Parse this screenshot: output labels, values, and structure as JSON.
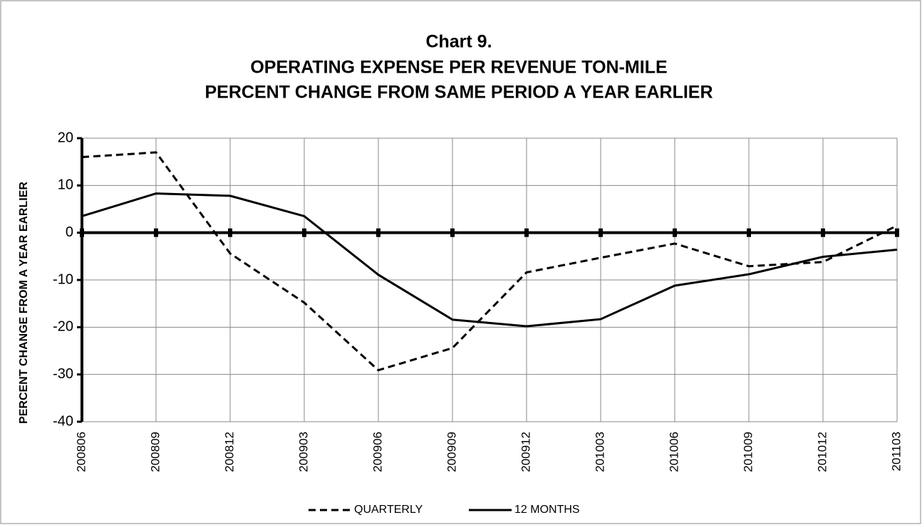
{
  "chart_data": {
    "type": "line",
    "title": [
      "Chart 9.",
      "OPERATING EXPENSE PER REVENUE TON-MILE",
      "PERCENT CHANGE FROM SAME PERIOD A YEAR EARLIER"
    ],
    "y_label": "PERCENT CHANGE FROM A YEAR EARLIER",
    "categories": [
      "200806",
      "200809",
      "200812",
      "200903",
      "200906",
      "200909",
      "200912",
      "201003",
      "201006",
      "201009",
      "201012",
      "201103"
    ],
    "series": [
      {
        "name": "QUARTERLY",
        "color": "#000000",
        "dash": true,
        "values": [
          16,
          17,
          -4.4,
          -14.8,
          -29.1,
          -24.4,
          -8.4,
          -5.3,
          -2.3,
          -7.1,
          -6.2,
          1.5
        ]
      },
      {
        "name": "12 MONTHS",
        "color": "#000000",
        "dash": false,
        "values": [
          3.5,
          8.3,
          7.8,
          3.5,
          -8.9,
          -18.4,
          -19.8,
          -18.3,
          -11.2,
          -8.8,
          -5.1,
          -3.6
        ]
      }
    ],
    "ylim": [
      -40,
      20
    ],
    "yticks": [
      -40,
      -30,
      -20,
      -10,
      0,
      10,
      20
    ],
    "grid": true
  }
}
